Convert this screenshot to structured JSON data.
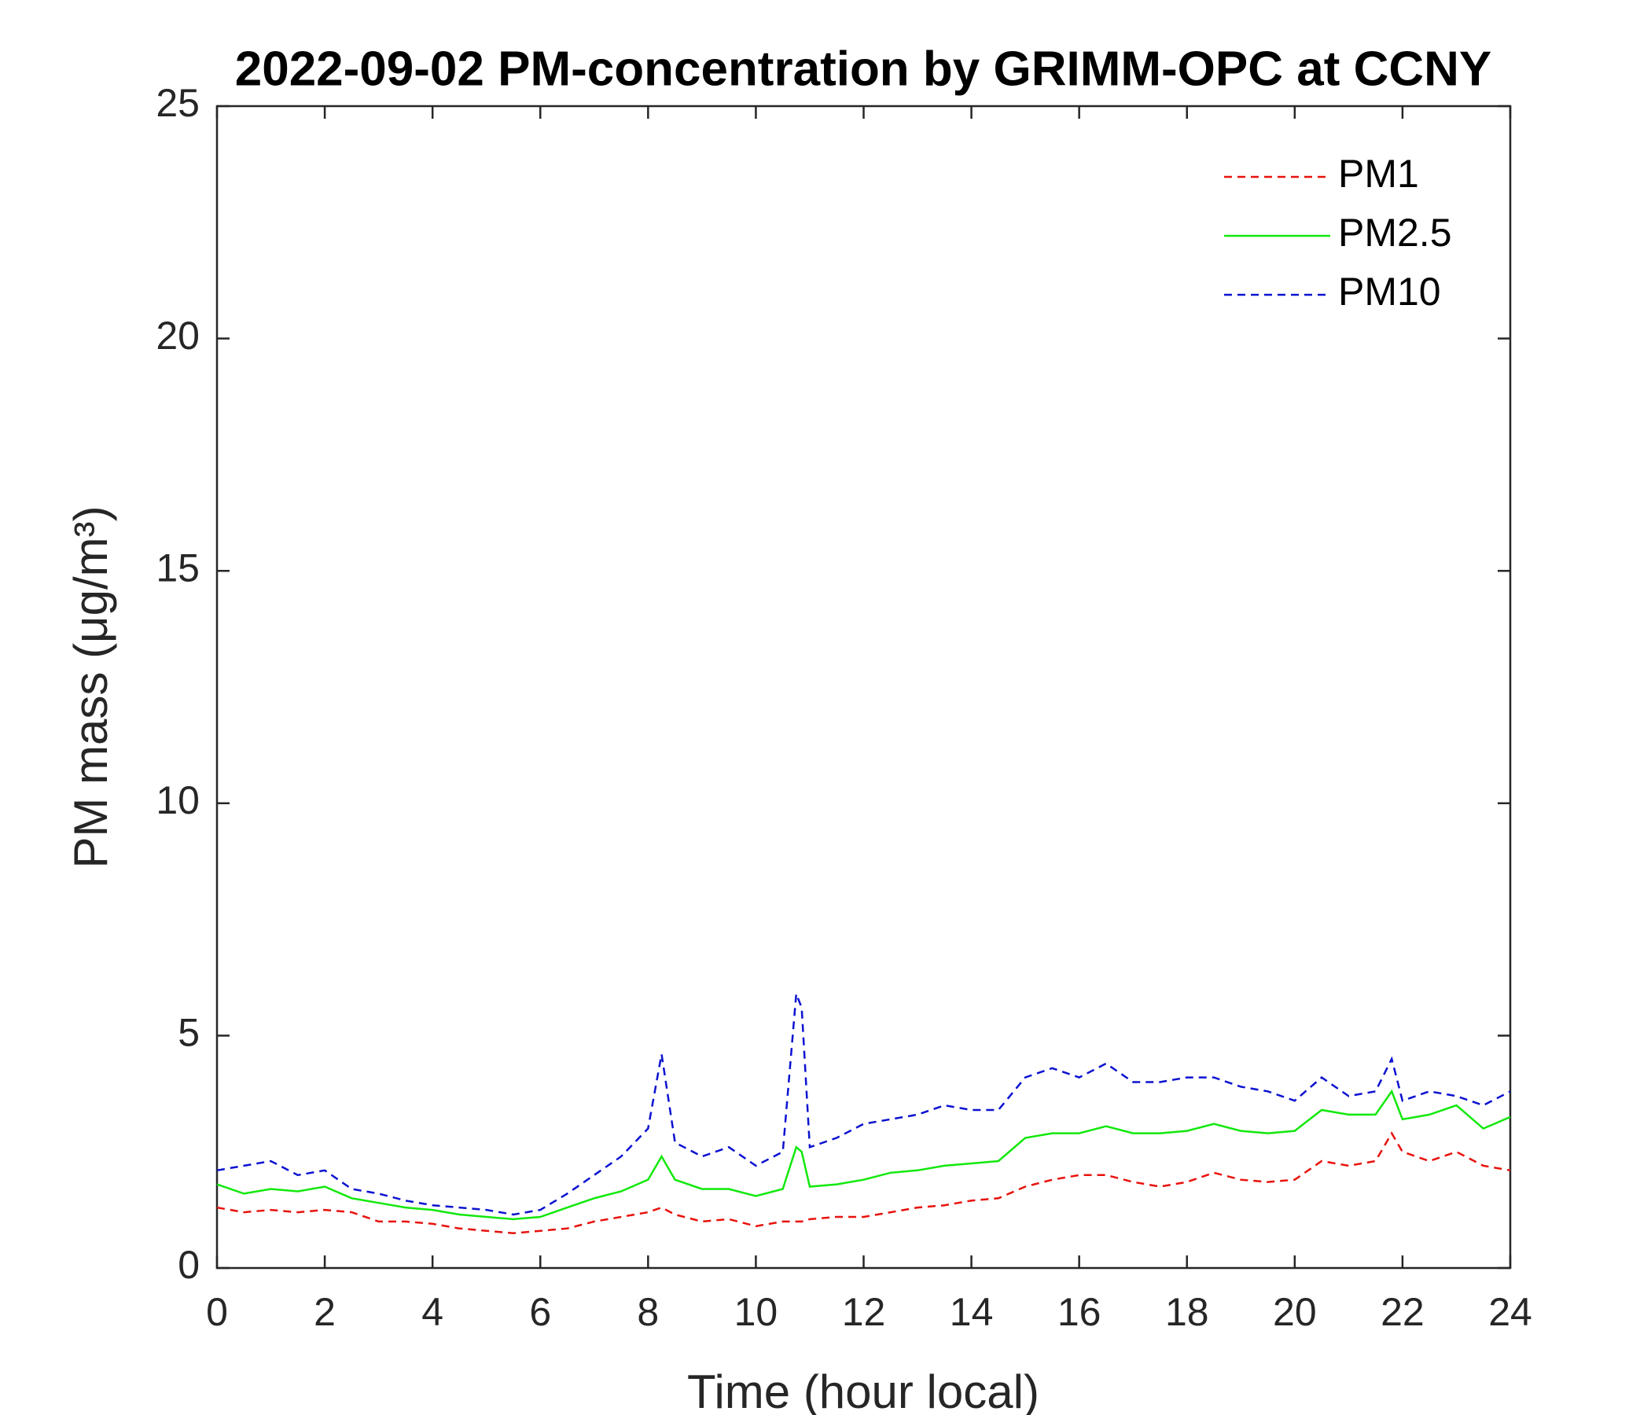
{
  "chart_data": {
    "type": "line",
    "title": "2022-09-02 PM-concentration by GRIMM-OPC at CCNY",
    "xlabel": "Time (hour local)",
    "ylabel": "PM mass (μg/m³)",
    "x": [
      0,
      0.5,
      1,
      1.5,
      2,
      2.5,
      3,
      3.5,
      4,
      4.5,
      5,
      5.5,
      6,
      6.5,
      7,
      7.5,
      8,
      8.25,
      8.5,
      9,
      9.5,
      10,
      10.5,
      10.75,
      10.85,
      11,
      11.5,
      12,
      12.5,
      13,
      13.5,
      14,
      14.5,
      15,
      15.5,
      16,
      16.5,
      17,
      17.5,
      18,
      18.5,
      19,
      19.5,
      20,
      20.5,
      21,
      21.5,
      21.8,
      22,
      22.5,
      23,
      23.5,
      24
    ],
    "series": [
      {
        "name": "PM1",
        "color": "#e8120c",
        "style": "dashed",
        "values": [
          1.3,
          1.2,
          1.25,
          1.2,
          1.25,
          1.2,
          1.0,
          1.0,
          0.95,
          0.85,
          0.8,
          0.75,
          0.8,
          0.85,
          1.0,
          1.1,
          1.2,
          1.3,
          1.15,
          1.0,
          1.05,
          0.9,
          1.0,
          1.0,
          1.0,
          1.05,
          1.1,
          1.1,
          1.2,
          1.3,
          1.35,
          1.45,
          1.5,
          1.75,
          1.9,
          2.0,
          2.0,
          1.85,
          1.75,
          1.85,
          2.05,
          1.9,
          1.85,
          1.9,
          2.3,
          2.2,
          2.3,
          2.9,
          2.5,
          2.3,
          2.5,
          2.2,
          2.1
        ]
      },
      {
        "name": "PM2.5",
        "color": "#12e80c",
        "style": "solid",
        "values": [
          1.8,
          1.6,
          1.7,
          1.65,
          1.75,
          1.5,
          1.4,
          1.3,
          1.25,
          1.15,
          1.1,
          1.05,
          1.1,
          1.3,
          1.5,
          1.65,
          1.9,
          2.4,
          1.9,
          1.7,
          1.7,
          1.55,
          1.7,
          2.6,
          2.5,
          1.75,
          1.8,
          1.9,
          2.05,
          2.1,
          2.2,
          2.25,
          2.3,
          2.8,
          2.9,
          2.9,
          3.05,
          2.9,
          2.9,
          2.95,
          3.1,
          2.95,
          2.9,
          2.95,
          3.4,
          3.3,
          3.3,
          3.8,
          3.2,
          3.3,
          3.5,
          3.0,
          3.25
        ]
      },
      {
        "name": "PM10",
        "color": "#0c12d0",
        "style": "dashed",
        "values": [
          2.1,
          2.2,
          2.3,
          2.0,
          2.1,
          1.7,
          1.6,
          1.45,
          1.35,
          1.3,
          1.25,
          1.15,
          1.25,
          1.6,
          2.0,
          2.4,
          3.0,
          4.6,
          2.7,
          2.4,
          2.6,
          2.2,
          2.5,
          5.9,
          5.6,
          2.6,
          2.8,
          3.1,
          3.2,
          3.3,
          3.5,
          3.4,
          3.4,
          4.1,
          4.3,
          4.1,
          4.4,
          4.0,
          4.0,
          4.1,
          4.1,
          3.9,
          3.8,
          3.6,
          4.1,
          3.7,
          3.8,
          4.5,
          3.6,
          3.8,
          3.7,
          3.5,
          3.8
        ]
      }
    ],
    "xlim": [
      0,
      24
    ],
    "xticks": [
      0,
      2,
      4,
      6,
      8,
      10,
      12,
      14,
      16,
      18,
      20,
      22,
      24
    ],
    "ylim": [
      0,
      25
    ],
    "yticks": [
      0,
      5,
      10,
      15,
      20,
      25
    ],
    "legend": "upper right",
    "grid": false
  }
}
